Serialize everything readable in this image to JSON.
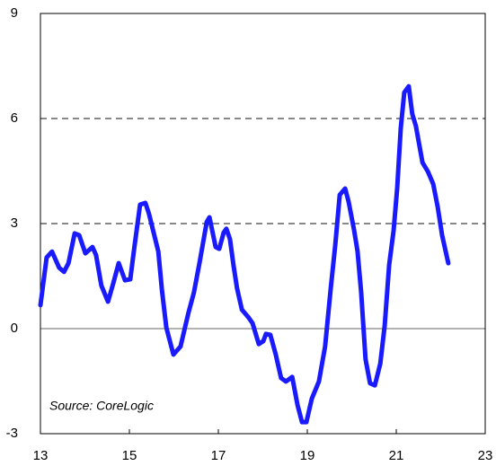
{
  "chart_data": {
    "type": "line",
    "annotation": "Source: CoreLogic",
    "series": [
      {
        "color": "#1a1aff",
        "x": [
          13.0,
          13.14,
          13.26,
          13.42,
          13.53,
          13.63,
          13.77,
          13.87,
          14.01,
          14.17,
          14.25,
          14.37,
          14.52,
          14.64,
          14.76,
          14.9,
          15.02,
          15.1,
          15.24,
          15.36,
          15.44,
          15.65,
          15.73,
          15.83,
          15.99,
          16.15,
          16.33,
          16.45,
          16.58,
          16.74,
          16.8,
          16.94,
          17.02,
          17.12,
          17.18,
          17.26,
          17.34,
          17.42,
          17.53,
          17.67,
          17.77,
          17.91,
          18.01,
          18.07,
          18.17,
          18.29,
          18.41,
          18.52,
          18.66,
          18.78,
          18.88,
          18.98,
          19.1,
          19.26,
          19.4,
          19.53,
          19.63,
          19.73,
          19.85,
          19.93,
          20.05,
          20.13,
          20.21,
          20.31,
          20.41,
          20.52,
          20.64,
          20.74,
          20.84,
          20.94,
          21.02,
          21.1,
          21.18,
          21.28,
          21.36,
          21.44,
          21.59,
          21.71,
          21.83,
          21.93,
          22.03,
          22.17
        ],
        "values": [
          0.67,
          2.03,
          2.2,
          1.74,
          1.62,
          1.87,
          2.72,
          2.67,
          2.15,
          2.33,
          2.1,
          1.23,
          0.77,
          1.31,
          1.87,
          1.38,
          1.41,
          2.2,
          3.54,
          3.59,
          3.28,
          2.2,
          1.13,
          0.03,
          -0.74,
          -0.51,
          0.46,
          1.03,
          1.9,
          3.05,
          3.18,
          2.33,
          2.28,
          2.74,
          2.85,
          2.56,
          1.82,
          1.15,
          0.54,
          0.33,
          0.15,
          -0.44,
          -0.36,
          -0.15,
          -0.18,
          -0.74,
          -1.41,
          -1.51,
          -1.38,
          -2.18,
          -2.67,
          -2.67,
          -2.0,
          -1.51,
          -0.51,
          1.18,
          2.41,
          3.82,
          4.0,
          3.62,
          2.82,
          2.21,
          1.05,
          -0.87,
          -1.56,
          -1.62,
          -1.0,
          0.08,
          1.82,
          2.79,
          4.0,
          5.72,
          6.74,
          6.92,
          6.13,
          5.79,
          4.74,
          4.49,
          4.13,
          3.49,
          2.67,
          1.87
        ]
      }
    ],
    "xlim": [
      13,
      23
    ],
    "xticks": [
      13,
      15,
      17,
      19,
      21,
      23
    ],
    "ylim": [
      -3,
      9
    ],
    "yticks": [
      -3,
      0,
      3,
      6,
      9
    ],
    "grid": true
  }
}
